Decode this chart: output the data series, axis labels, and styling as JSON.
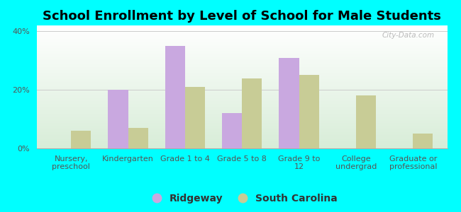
{
  "title": "School Enrollment by Level of School for Male Students",
  "categories": [
    "Nursery,\npreschool",
    "Kindergarten",
    "Grade 1 to 4",
    "Grade 5 to 8",
    "Grade 9 to\n12",
    "College\nundergrad",
    "Graduate or\nprofessional"
  ],
  "ridgeway": [
    0,
    20,
    35,
    12,
    31,
    0,
    0
  ],
  "south_carolina": [
    6,
    7,
    21,
    24,
    25,
    18,
    5
  ],
  "ridgeway_color": "#c9a8e0",
  "south_carolina_color": "#c8cc96",
  "background_color": "#00ffff",
  "ylim": [
    0,
    42
  ],
  "yticks": [
    0,
    20,
    40
  ],
  "ytick_labels": [
    "0%",
    "20%",
    "40%"
  ],
  "bar_width": 0.35,
  "legend_labels": [
    "Ridgeway",
    "South Carolina"
  ],
  "title_fontsize": 13,
  "tick_fontsize": 8,
  "legend_fontsize": 10,
  "watermark": "City-Data.com"
}
